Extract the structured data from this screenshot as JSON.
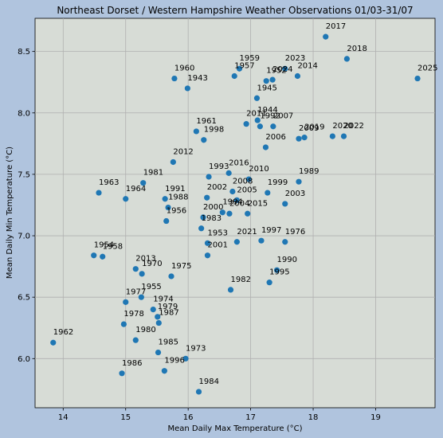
{
  "chart_data": {
    "type": "scatter",
    "title": "Northeast Dorset / Western Hampshire Weather Observations 01/03-31/07",
    "xlabel": "Mean Daily Max Temperature (°C)",
    "ylabel": "Mean Daily Min Temperature (°C)",
    "xlim": [
      13.55,
      19.95
    ],
    "ylim": [
      5.6,
      8.77
    ],
    "xticks": [
      "14",
      "15",
      "16",
      "17",
      "18",
      "19"
    ],
    "yticks": [
      "6.0",
      "6.5",
      "7.0",
      "7.5",
      "8.0",
      "8.5"
    ],
    "grid": true,
    "marker_color": "#1f77b4",
    "points": [
      {
        "label": "2017",
        "x": 18.2,
        "y": 8.62
      },
      {
        "label": "2018",
        "x": 18.54,
        "y": 8.44
      },
      {
        "label": "2025",
        "x": 19.67,
        "y": 8.28
      },
      {
        "label": "1959",
        "x": 16.82,
        "y": 8.36
      },
      {
        "label": "1957",
        "x": 16.74,
        "y": 8.3
      },
      {
        "label": "2023",
        "x": 17.55,
        "y": 8.36
      },
      {
        "label": "2024",
        "x": 17.35,
        "y": 8.27
      },
      {
        "label": "1952",
        "x": 17.25,
        "y": 8.26
      },
      {
        "label": "2014",
        "x": 17.75,
        "y": 8.3
      },
      {
        "label": "1945",
        "x": 17.1,
        "y": 8.12
      },
      {
        "label": "1960",
        "x": 15.78,
        "y": 8.28
      },
      {
        "label": "1943",
        "x": 15.99,
        "y": 8.2
      },
      {
        "label": "2011",
        "x": 16.93,
        "y": 7.91
      },
      {
        "label": "1944",
        "x": 17.11,
        "y": 7.94
      },
      {
        "label": "1992",
        "x": 17.15,
        "y": 7.89
      },
      {
        "label": "2007",
        "x": 17.36,
        "y": 7.89
      },
      {
        "label": "2006",
        "x": 17.24,
        "y": 7.72
      },
      {
        "label": "2009",
        "x": 17.77,
        "y": 7.79
      },
      {
        "label": "2019",
        "x": 17.86,
        "y": 7.8
      },
      {
        "label": "2020",
        "x": 18.31,
        "y": 7.81
      },
      {
        "label": "2022",
        "x": 18.49,
        "y": 7.81
      },
      {
        "label": "1961",
        "x": 16.13,
        "y": 7.85
      },
      {
        "label": "1998",
        "x": 16.25,
        "y": 7.78
      },
      {
        "label": "2012",
        "x": 15.76,
        "y": 7.6
      },
      {
        "label": "1993",
        "x": 16.33,
        "y": 7.48
      },
      {
        "label": "2016",
        "x": 16.65,
        "y": 7.51
      },
      {
        "label": "2010",
        "x": 16.97,
        "y": 7.46
      },
      {
        "label": "2008",
        "x": 16.71,
        "y": 7.36
      },
      {
        "label": "1989",
        "x": 17.77,
        "y": 7.44
      },
      {
        "label": "1999",
        "x": 17.27,
        "y": 7.35
      },
      {
        "label": "2002",
        "x": 16.3,
        "y": 7.31
      },
      {
        "label": "2005",
        "x": 16.78,
        "y": 7.29
      },
      {
        "label": "1994",
        "x": 16.55,
        "y": 7.19
      },
      {
        "label": "2004",
        "x": 16.66,
        "y": 7.18
      },
      {
        "label": "2015",
        "x": 16.95,
        "y": 7.18
      },
      {
        "label": "2003",
        "x": 17.55,
        "y": 7.26
      },
      {
        "label": "2000",
        "x": 16.24,
        "y": 7.15
      },
      {
        "label": "1983",
        "x": 16.21,
        "y": 7.06
      },
      {
        "label": "1953",
        "x": 16.31,
        "y": 6.94
      },
      {
        "label": "2001",
        "x": 16.31,
        "y": 6.84
      },
      {
        "label": "2021",
        "x": 16.78,
        "y": 6.95
      },
      {
        "label": "1997",
        "x": 17.17,
        "y": 6.96
      },
      {
        "label": "1976",
        "x": 17.55,
        "y": 6.95
      },
      {
        "label": "1990",
        "x": 17.42,
        "y": 6.72
      },
      {
        "label": "1995",
        "x": 17.3,
        "y": 6.62
      },
      {
        "label": "1982",
        "x": 16.68,
        "y": 6.56
      },
      {
        "label": "1963",
        "x": 14.57,
        "y": 7.35
      },
      {
        "label": "1964",
        "x": 15.0,
        "y": 7.3
      },
      {
        "label": "1981",
        "x": 15.28,
        "y": 7.43
      },
      {
        "label": "1991",
        "x": 15.63,
        "y": 7.3
      },
      {
        "label": "1988",
        "x": 15.68,
        "y": 7.23
      },
      {
        "label": "1956",
        "x": 15.65,
        "y": 7.12
      },
      {
        "label": "1954",
        "x": 14.49,
        "y": 6.84
      },
      {
        "label": "1958",
        "x": 14.63,
        "y": 6.83
      },
      {
        "label": "2013",
        "x": 15.16,
        "y": 6.73
      },
      {
        "label": "1970",
        "x": 15.26,
        "y": 6.69
      },
      {
        "label": "1975",
        "x": 15.73,
        "y": 6.67
      },
      {
        "label": "1977",
        "x": 15.0,
        "y": 6.46
      },
      {
        "label": "1955",
        "x": 15.25,
        "y": 6.5
      },
      {
        "label": "1974",
        "x": 15.44,
        "y": 6.4
      },
      {
        "label": "1979",
        "x": 15.51,
        "y": 6.34
      },
      {
        "label": "1987",
        "x": 15.53,
        "y": 6.29
      },
      {
        "label": "1978",
        "x": 14.97,
        "y": 6.28
      },
      {
        "label": "1980",
        "x": 15.16,
        "y": 6.15
      },
      {
        "label": "1962",
        "x": 13.84,
        "y": 6.13
      },
      {
        "label": "1985",
        "x": 15.52,
        "y": 6.05
      },
      {
        "label": "1973",
        "x": 15.96,
        "y": 6.0
      },
      {
        "label": "1996",
        "x": 15.62,
        "y": 5.9
      },
      {
        "label": "1986",
        "x": 14.94,
        "y": 5.88
      },
      {
        "label": "1984",
        "x": 16.17,
        "y": 5.73
      }
    ]
  }
}
